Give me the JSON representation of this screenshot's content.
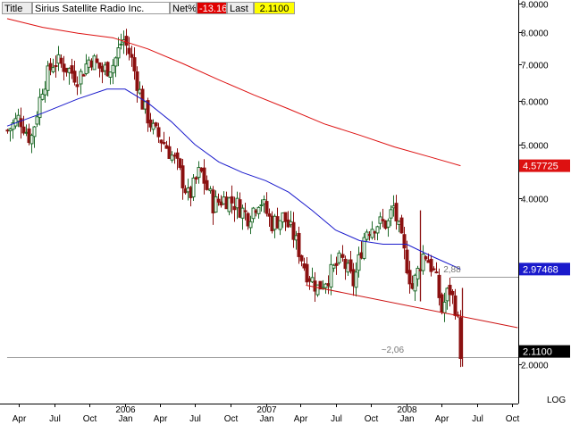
{
  "header": {
    "title_label": "Title",
    "title_value": "Sirius Satellite Radio Inc.",
    "net_label": "Net%",
    "net_value": "-13.16",
    "last_label": "Last",
    "last_value": "2.1100"
  },
  "colors": {
    "up_candle": "#1f6b2a",
    "down_candle": "#8b1010",
    "ma_short": "#1a1acc",
    "ma_long": "#dd1111",
    "trendline": "#cc1111",
    "badge_red": "#dd1111",
    "badge_blue": "#1a1acc",
    "badge_black": "#000000"
  },
  "scale_label": "LOG",
  "badges": [
    {
      "text": "4.57725",
      "value": 4.57725,
      "color": "red"
    },
    {
      "text": "2.97468",
      "value": 2.97468,
      "color": "blue"
    },
    {
      "text": "2.1100",
      "value": 2.11,
      "color": "black"
    }
  ],
  "annotations": [
    {
      "text": "2,88",
      "date": "2008-04-24",
      "value": 2.88
    },
    {
      "text": "~2,06",
      "date": "2007-11-15",
      "value": 2.06
    }
  ],
  "chart_data": {
    "type": "candlestick",
    "title": "Sirius Satellite Radio Inc.",
    "y_scale": "log",
    "ylim": [
      1.75,
      9.0
    ],
    "y_ticks": [
      {
        "value": 9,
        "label": "9.0000"
      },
      {
        "value": 8,
        "label": "8.0000"
      },
      {
        "value": 7,
        "label": "7.0000"
      },
      {
        "value": 6,
        "label": "6.0000"
      },
      {
        "value": 5,
        "label": "5.0000"
      },
      {
        "value": 4,
        "label": "4.0000"
      },
      {
        "value": 3,
        "label": "3.0000"
      },
      {
        "value": 2,
        "label": "2.0000"
      }
    ],
    "x_range": [
      "2005-03-01",
      "2008-11-01"
    ],
    "x_ticks": [
      {
        "date": "2005-04-01",
        "label": "Apr"
      },
      {
        "date": "2005-07-01",
        "label": "Jul"
      },
      {
        "date": "2005-10-01",
        "label": "Oct"
      },
      {
        "date": "2006-01-01",
        "label": "Jan",
        "year": "2006"
      },
      {
        "date": "2006-04-01",
        "label": "Apr"
      },
      {
        "date": "2006-07-01",
        "label": "Jul"
      },
      {
        "date": "2006-10-01",
        "label": "Oct"
      },
      {
        "date": "2007-01-01",
        "label": "Jan",
        "year": "2007"
      },
      {
        "date": "2007-04-01",
        "label": "Apr"
      },
      {
        "date": "2007-07-01",
        "label": "Jul"
      },
      {
        "date": "2007-10-01",
        "label": "Oct"
      },
      {
        "date": "2008-01-01",
        "label": "Jan",
        "year": "2008"
      },
      {
        "date": "2008-04-01",
        "label": "Apr"
      },
      {
        "date": "2008-07-01",
        "label": "Jul"
      },
      {
        "date": "2008-10-01",
        "label": "Oct"
      }
    ],
    "close_path": [
      [
        "2005-03-01",
        5.3
      ],
      [
        "2005-04-01",
        5.6
      ],
      [
        "2005-05-01",
        5.1
      ],
      [
        "2005-06-01",
        6.4
      ],
      [
        "2005-07-01",
        7.1
      ],
      [
        "2005-08-01",
        6.9
      ],
      [
        "2005-09-01",
        6.6
      ],
      [
        "2005-10-01",
        7.2
      ],
      [
        "2005-11-01",
        6.8
      ],
      [
        "2005-12-01",
        7.0
      ],
      [
        "2005-12-25",
        7.8
      ],
      [
        "2006-01-15",
        7.2
      ],
      [
        "2006-02-15",
        5.9
      ],
      [
        "2006-03-15",
        5.3
      ],
      [
        "2006-04-15",
        5.0
      ],
      [
        "2006-05-15",
        4.6
      ],
      [
        "2006-06-15",
        4.0
      ],
      [
        "2006-07-15",
        4.5
      ],
      [
        "2006-08-15",
        3.9
      ],
      [
        "2006-09-15",
        4.0
      ],
      [
        "2006-10-15",
        3.9
      ],
      [
        "2006-11-15",
        3.7
      ],
      [
        "2006-12-15",
        4.0
      ],
      [
        "2007-01-15",
        3.6
      ],
      [
        "2007-02-15",
        3.7
      ],
      [
        "2007-03-15",
        3.4
      ],
      [
        "2007-04-15",
        2.95
      ],
      [
        "2007-05-15",
        2.75
      ],
      [
        "2007-06-15",
        2.9
      ],
      [
        "2007-07-15",
        3.1
      ],
      [
        "2007-08-15",
        2.8
      ],
      [
        "2007-09-15",
        3.5
      ],
      [
        "2007-10-15",
        3.6
      ],
      [
        "2007-11-15",
        3.6
      ],
      [
        "2007-11-25",
        3.9
      ],
      [
        "2007-12-15",
        3.4
      ],
      [
        "2008-01-15",
        2.75
      ],
      [
        "2008-02-15",
        3.2
      ],
      [
        "2008-03-15",
        2.9
      ],
      [
        "2008-04-01",
        2.5
      ],
      [
        "2008-04-20",
        2.75
      ],
      [
        "2008-05-10",
        2.5
      ],
      [
        "2008-05-20",
        2.11
      ]
    ],
    "extreme_wicks": [
      {
        "date": "2008-02-05",
        "high": 3.8,
        "low": 2.6
      },
      {
        "date": "2008-05-23",
        "high": 2.75,
        "low": 1.98
      }
    ],
    "series": [
      {
        "name": "",
        "points": [
          [
            "2005-03-01",
            5.4
          ],
          [
            "2005-06-01",
            5.7
          ],
          [
            "2005-09-01",
            6.05
          ],
          [
            "2005-11-15",
            6.3
          ],
          [
            "2006-01-01",
            6.3
          ],
          [
            "2006-03-01",
            5.95
          ],
          [
            "2006-05-01",
            5.5
          ],
          [
            "2006-07-01",
            5.0
          ],
          [
            "2006-09-01",
            4.65
          ],
          [
            "2006-11-01",
            4.45
          ],
          [
            "2007-01-01",
            4.3
          ],
          [
            "2007-03-01",
            4.1
          ],
          [
            "2007-05-01",
            3.8
          ],
          [
            "2007-07-01",
            3.5
          ],
          [
            "2007-09-01",
            3.35
          ],
          [
            "2007-11-01",
            3.3
          ],
          [
            "2008-01-01",
            3.3
          ],
          [
            "2008-03-01",
            3.15
          ],
          [
            "2008-05-20",
            2.97468
          ]
        ]
      },
      {
        "name": "",
        "points": [
          [
            "2005-03-01",
            8.45
          ],
          [
            "2005-06-01",
            8.15
          ],
          [
            "2005-09-01",
            7.95
          ],
          [
            "2005-12-01",
            7.8
          ],
          [
            "2006-03-01",
            7.45
          ],
          [
            "2006-06-01",
            7.0
          ],
          [
            "2006-09-01",
            6.55
          ],
          [
            "2006-12-01",
            6.15
          ],
          [
            "2007-03-01",
            5.8
          ],
          [
            "2007-06-01",
            5.45
          ],
          [
            "2007-09-01",
            5.2
          ],
          [
            "2007-12-01",
            4.95
          ],
          [
            "2008-03-01",
            4.75
          ],
          [
            "2008-05-20",
            4.57725
          ]
        ]
      },
      {
        "name": "",
        "points": [
          [
            "2007-04-15",
            2.78
          ],
          [
            "2008-10-15",
            2.33
          ]
        ]
      }
    ],
    "horizontal_lines": [
      {
        "value": 2.88,
        "from": "2008-04-24"
      },
      {
        "value": 2.06,
        "from": "2005-03-01"
      }
    ]
  }
}
